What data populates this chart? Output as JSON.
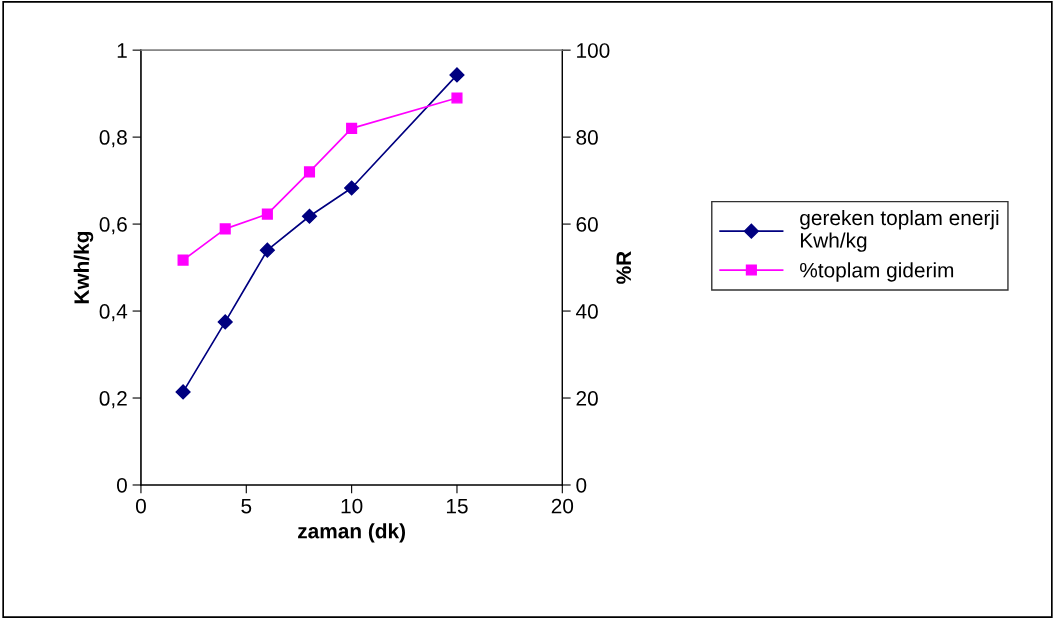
{
  "chart_data": {
    "type": "line",
    "xlabel": "zaman (dk)",
    "ylabel": "Kwh/kg",
    "y2label": "%R",
    "xlim": [
      0,
      20
    ],
    "xticks": [
      0,
      5,
      10,
      15,
      20
    ],
    "ylim": [
      0,
      1
    ],
    "yticks": [
      0,
      {
        "value": 0.2,
        "label": "0,2"
      },
      {
        "value": 0.4,
        "label": "0,4"
      },
      {
        "value": 0.6,
        "label": "0,6"
      },
      {
        "value": 0.8,
        "label": "0,8"
      },
      1
    ],
    "y2lim": [
      0,
      100
    ],
    "y2ticks": [
      0,
      20,
      40,
      60,
      80,
      100
    ],
    "grid": false,
    "legend": "right",
    "line_style": "solid",
    "series": [
      {
        "name": "gereken toplam enerji Kwh/kg",
        "color": "#000080",
        "marker": "diamond",
        "x": [
          2,
          4,
          6,
          8,
          10,
          15
        ],
        "values": [
          0.214,
          0.375,
          0.54,
          0.618,
          0.683,
          0.943
        ]
      },
      {
        "name": "%toplam giderim",
        "color": "#ff00ff",
        "marker": "square",
        "axis": "y2",
        "x": [
          2,
          4,
          6,
          8,
          10,
          15
        ],
        "values": [
          51.7,
          58.9,
          62.3,
          72,
          82,
          89
        ]
      }
    ]
  }
}
